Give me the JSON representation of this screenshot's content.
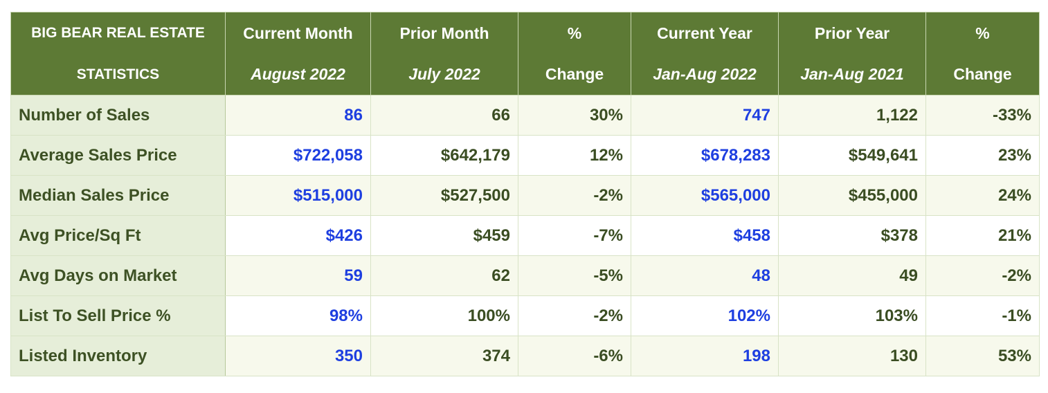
{
  "header": {
    "title_line1": "BIG BEAR REAL ESTATE",
    "title_line2": "STATISTICS",
    "columns": [
      {
        "line1": "Current Month",
        "line2": "August 2022"
      },
      {
        "line1": "Prior Month",
        "line2": "July 2022"
      },
      {
        "line1": "%",
        "line2": "Change"
      },
      {
        "line1": "Current Year",
        "line2": "Jan-Aug 2022"
      },
      {
        "line1": "Prior Year",
        "line2": "Jan-Aug 2021"
      },
      {
        "line1": "%",
        "line2": "Change"
      }
    ]
  },
  "rows": [
    {
      "label": "Number of Sales",
      "values": [
        "86",
        "66",
        "30%",
        "747",
        "1,122",
        "-33%"
      ]
    },
    {
      "label": "Average Sales Price",
      "values": [
        "$722,058",
        "$642,179",
        "12%",
        "$678,283",
        "$549,641",
        "23%"
      ]
    },
    {
      "label": "Median Sales Price",
      "values": [
        "$515,000",
        "$527,500",
        "-2%",
        "$565,000",
        "$455,000",
        "24%"
      ]
    },
    {
      "label": "Avg Price/Sq Ft",
      "values": [
        "$426",
        "$459",
        "-7%",
        "$458",
        "$378",
        "21%"
      ]
    },
    {
      "label": "Avg Days on Market",
      "values": [
        "59",
        "62",
        "-5%",
        "48",
        "49",
        "-2%"
      ]
    },
    {
      "label": "List To Sell Price %",
      "values": [
        "98%",
        "100%",
        "-2%",
        "102%",
        "103%",
        "-1%"
      ]
    },
    {
      "label": "Listed Inventory",
      "values": [
        "350",
        "374",
        "-6%",
        "198",
        "130",
        "53%"
      ]
    }
  ],
  "colors": {
    "header_bg": "#5d7a35",
    "label_bg": "#e6eed9",
    "highlight_text": "#1e3fe0",
    "body_text": "#3a4d22"
  }
}
